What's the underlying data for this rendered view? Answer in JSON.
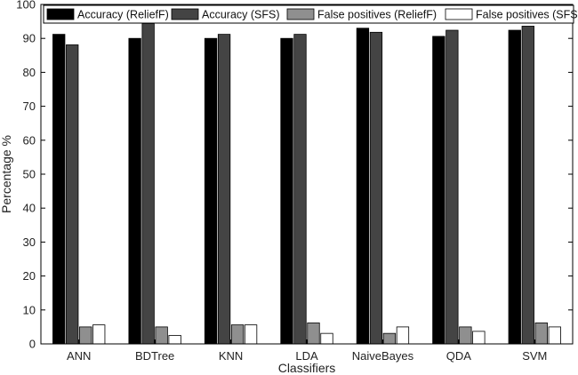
{
  "chart_data": {
    "type": "bar",
    "xlabel": "Classifiers",
    "ylabel": "Percentage %",
    "ylim": [
      0,
      100
    ],
    "yticks": [
      0,
      10,
      20,
      30,
      40,
      50,
      60,
      70,
      80,
      90,
      100
    ],
    "grid": false,
    "legend_position": "top",
    "categories": [
      "ANN",
      "BDTree",
      "KNN",
      "LDA",
      "NaiveBayes",
      "QDA",
      "SVM"
    ],
    "series": [
      {
        "name": "Accuracy (ReliefF)",
        "color": "#000000",
        "values": [
          91.2,
          90.0,
          90.0,
          90.0,
          93.0,
          90.6,
          92.4
        ]
      },
      {
        "name": "Accuracy (SFS)",
        "color": "#444444",
        "values": [
          88.1,
          94.4,
          91.2,
          91.2,
          91.8,
          92.4,
          93.6
        ]
      },
      {
        "name": "False positives (ReliefF)",
        "color": "#8f8f8f",
        "values": [
          5.0,
          5.0,
          5.6,
          6.2,
          3.1,
          5.0,
          6.2
        ]
      },
      {
        "name": "False positives (SFS)",
        "color": "#ffffff",
        "values": [
          5.6,
          2.5,
          5.6,
          3.1,
          5.0,
          3.7,
          5.0
        ]
      }
    ]
  }
}
